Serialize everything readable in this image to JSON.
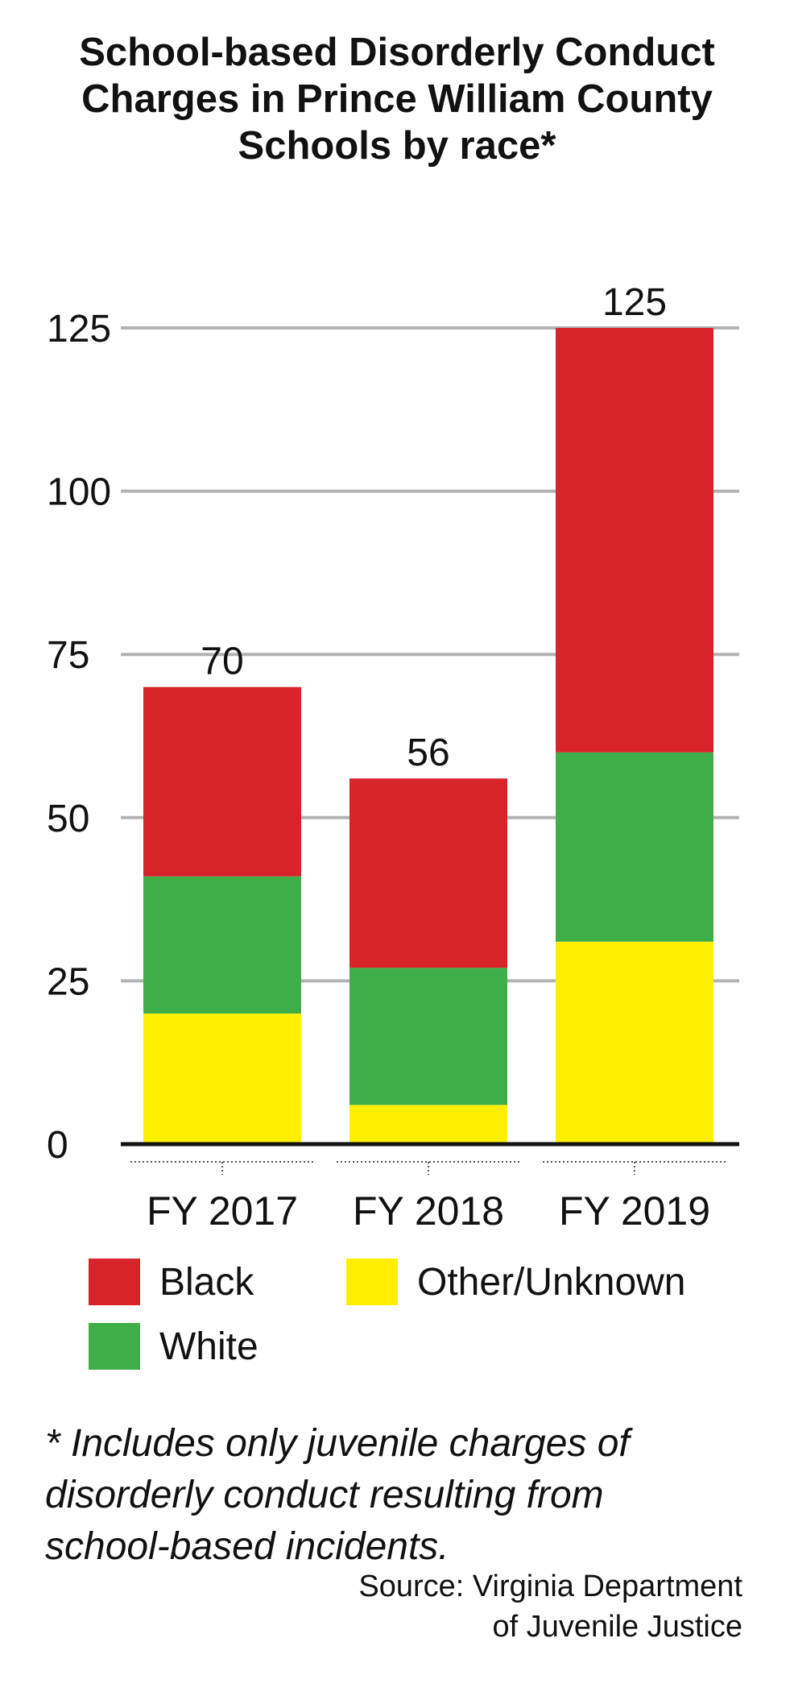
{
  "chart_data": {
    "type": "bar",
    "stacked": true,
    "title_lines": [
      "School-based Disorderly Conduct",
      "Charges in Prince William County",
      "Schools by race*"
    ],
    "categories": [
      "FY 2017",
      "FY 2018",
      "FY 2019"
    ],
    "series": [
      {
        "name": "Other/Unknown",
        "color": "#FFF000",
        "values": [
          20,
          6,
          31
        ]
      },
      {
        "name": "White",
        "color": "#3FAE49",
        "values": [
          21,
          21,
          29
        ]
      },
      {
        "name": "Black",
        "color": "#D8232A",
        "values": [
          29,
          29,
          65
        ]
      }
    ],
    "totals": [
      "70",
      "56",
      "125"
    ],
    "yticks": [
      "0",
      "25",
      "50",
      "75",
      "100",
      "125"
    ],
    "ylim": [
      0,
      125
    ],
    "grid": true,
    "legend": {
      "black": "Black",
      "white": "White",
      "other": "Other/Unknown"
    },
    "footnote_lines": [
      "* Includes only juvenile charges of",
      "disorderly conduct resulting from",
      "school-based incidents."
    ],
    "source_lines": [
      "Source: Virginia Department",
      "of Juvenile Justice"
    ],
    "colors": {
      "black": "#D8232A",
      "white": "#3FAE49",
      "other": "#FFF000",
      "grid": "#b3b3b3",
      "axis": "#111111"
    }
  }
}
